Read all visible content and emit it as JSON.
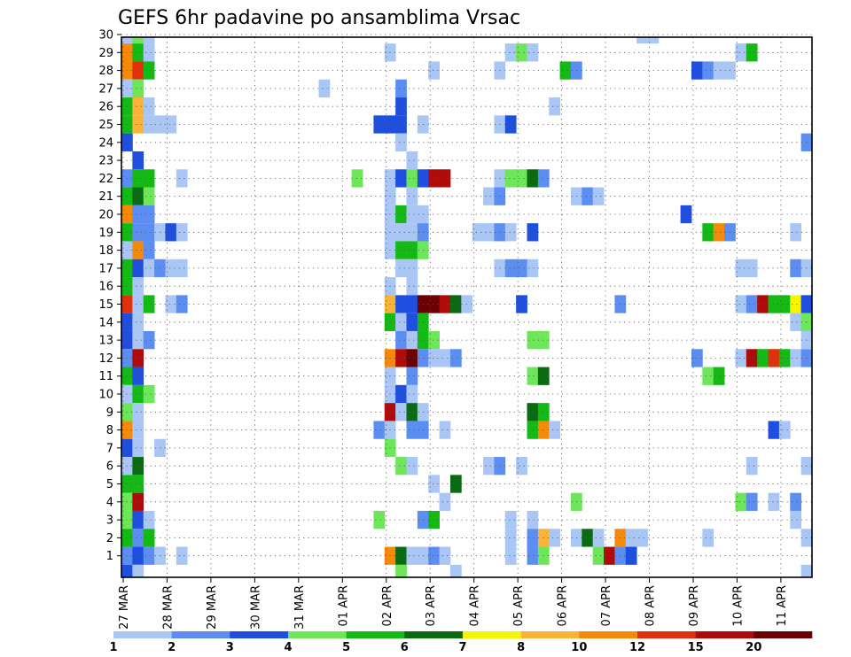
{
  "chart_data": {
    "type": "heatmap",
    "title": "GEFS 6hr padavine po ansamblima Vrsac",
    "x_ticks": [
      "27 MAR",
      "28 MAR",
      "29 MAR",
      "30 MAR",
      "31 MAR",
      "01 APR",
      "02 APR",
      "03 APR",
      "04 APR",
      "05 APR",
      "06 APR",
      "07 APR",
      "08 APR",
      "09 APR",
      "10 APR",
      "11 APR"
    ],
    "y_ticks": [
      "1",
      "2",
      "3",
      "4",
      "5",
      "6",
      "7",
      "8",
      "9",
      "10",
      "11",
      "12",
      "13",
      "14",
      "15",
      "16",
      "17",
      "18",
      "19",
      "20",
      "21",
      "22",
      "23",
      "24",
      "25",
      "26",
      "27",
      "28",
      "29",
      "30"
    ],
    "legend": {
      "labels": [
        "1",
        "2",
        "3",
        "4",
        "5",
        "6",
        "7",
        "8",
        "10",
        "12",
        "15",
        "20"
      ],
      "colors": [
        "#a9c6f5",
        "#5b8ef0",
        "#1f4fde",
        "#6de65a",
        "#15b915",
        "#0b6b12",
        "#f5f500",
        "#f9b437",
        "#f58a0a",
        "#e0300c",
        "#b00b0b",
        "#6b0000"
      ]
    },
    "cells": [
      [
        0,
        30,
        1
      ],
      [
        0,
        29,
        9
      ],
      [
        0,
        28,
        9
      ],
      [
        0,
        27,
        1
      ],
      [
        0,
        26,
        5
      ],
      [
        0,
        25,
        5
      ],
      [
        0,
        24,
        3
      ],
      [
        0,
        22,
        2
      ],
      [
        0,
        21,
        5
      ],
      [
        0,
        20,
        9
      ],
      [
        0,
        19,
        5
      ],
      [
        0,
        18,
        1
      ],
      [
        0,
        17,
        5
      ],
      [
        0,
        16,
        5
      ],
      [
        0,
        15,
        10
      ],
      [
        0,
        14,
        3
      ],
      [
        0,
        13,
        3
      ],
      [
        0,
        12,
        2
      ],
      [
        0,
        11,
        5
      ],
      [
        0,
        10,
        1
      ],
      [
        0,
        9,
        4
      ],
      [
        0,
        8,
        9
      ],
      [
        0,
        7,
        3
      ],
      [
        0,
        6,
        1
      ],
      [
        0,
        5,
        5
      ],
      [
        0,
        4,
        4
      ],
      [
        0,
        3,
        4
      ],
      [
        0,
        2,
        5
      ],
      [
        0,
        1,
        2
      ],
      [
        0,
        0,
        3
      ],
      [
        1,
        30,
        4
      ],
      [
        1,
        29,
        5
      ],
      [
        1,
        28,
        10
      ],
      [
        1,
        27,
        4
      ],
      [
        1,
        26,
        8
      ],
      [
        1,
        25,
        8
      ],
      [
        1,
        23,
        3
      ],
      [
        1,
        22,
        5
      ],
      [
        1,
        21,
        6
      ],
      [
        1,
        20,
        2
      ],
      [
        1,
        19,
        2
      ],
      [
        1,
        18,
        9
      ],
      [
        1,
        17,
        3
      ],
      [
        1,
        16,
        1
      ],
      [
        1,
        15,
        1
      ],
      [
        1,
        14,
        1
      ],
      [
        1,
        13,
        1
      ],
      [
        1,
        12,
        11
      ],
      [
        1,
        11,
        3
      ],
      [
        1,
        10,
        5
      ],
      [
        1,
        9,
        1
      ],
      [
        1,
        8,
        1
      ],
      [
        1,
        7,
        1
      ],
      [
        1,
        6,
        6
      ],
      [
        1,
        5,
        5
      ],
      [
        1,
        4,
        11
      ],
      [
        1,
        3,
        3
      ],
      [
        1,
        2,
        2
      ],
      [
        1,
        1,
        3
      ],
      [
        1,
        0,
        1
      ],
      [
        2,
        30,
        1
      ],
      [
        2,
        29,
        1
      ],
      [
        2,
        28,
        5
      ],
      [
        2,
        26,
        1
      ],
      [
        2,
        25,
        1
      ],
      [
        2,
        22,
        5
      ],
      [
        2,
        21,
        4
      ],
      [
        2,
        20,
        2
      ],
      [
        2,
        19,
        2
      ],
      [
        2,
        18,
        2
      ],
      [
        2,
        17,
        1
      ],
      [
        2,
        15,
        5
      ],
      [
        2,
        13,
        2
      ],
      [
        2,
        10,
        4
      ],
      [
        2,
        3,
        1
      ],
      [
        2,
        2,
        5
      ],
      [
        2,
        1,
        2
      ],
      [
        3,
        25,
        1
      ],
      [
        3,
        19,
        1
      ],
      [
        3,
        17,
        2
      ],
      [
        3,
        7,
        1
      ],
      [
        3,
        1,
        1
      ],
      [
        4,
        25,
        1
      ],
      [
        4,
        19,
        3
      ],
      [
        4,
        17,
        1
      ],
      [
        4,
        15,
        1
      ],
      [
        5,
        22,
        1
      ],
      [
        5,
        19,
        1
      ],
      [
        5,
        17,
        1
      ],
      [
        5,
        15,
        2
      ],
      [
        5,
        1,
        1
      ],
      [
        18,
        27,
        1
      ],
      [
        21,
        22,
        4
      ],
      [
        23,
        3,
        4
      ],
      [
        23,
        8,
        2
      ],
      [
        23,
        25,
        3
      ],
      [
        24,
        29,
        1
      ],
      [
        24,
        25,
        3
      ],
      [
        24,
        22,
        1
      ],
      [
        24,
        21,
        1
      ],
      [
        24,
        20,
        1
      ],
      [
        24,
        19,
        1
      ],
      [
        24,
        18,
        1
      ],
      [
        24,
        16,
        1
      ],
      [
        24,
        15,
        8
      ],
      [
        24,
        14,
        5
      ],
      [
        24,
        12,
        9
      ],
      [
        24,
        11,
        1
      ],
      [
        24,
        10,
        1
      ],
      [
        24,
        9,
        11
      ],
      [
        24,
        8,
        1
      ],
      [
        24,
        7,
        4
      ],
      [
        24,
        1,
        9
      ],
      [
        25,
        27,
        2
      ],
      [
        25,
        26,
        3
      ],
      [
        25,
        25,
        3
      ],
      [
        25,
        24,
        1
      ],
      [
        25,
        22,
        3
      ],
      [
        25,
        20,
        5
      ],
      [
        25,
        19,
        1
      ],
      [
        25,
        18,
        5
      ],
      [
        25,
        17,
        1
      ],
      [
        25,
        15,
        3
      ],
      [
        25,
        14,
        1
      ],
      [
        25,
        13,
        2
      ],
      [
        25,
        12,
        11
      ],
      [
        25,
        10,
        3
      ],
      [
        25,
        9,
        1
      ],
      [
        25,
        6,
        4
      ],
      [
        25,
        1,
        6
      ],
      [
        25,
        0,
        4
      ],
      [
        26,
        23,
        1
      ],
      [
        26,
        22,
        4
      ],
      [
        26,
        21,
        1
      ],
      [
        26,
        20,
        1
      ],
      [
        26,
        19,
        1
      ],
      [
        26,
        18,
        5
      ],
      [
        26,
        17,
        1
      ],
      [
        26,
        16,
        1
      ],
      [
        26,
        15,
        3
      ],
      [
        26,
        14,
        3
      ],
      [
        26,
        13,
        1
      ],
      [
        26,
        12,
        12
      ],
      [
        26,
        11,
        2
      ],
      [
        26,
        10,
        1
      ],
      [
        26,
        9,
        6
      ],
      [
        26,
        8,
        2
      ],
      [
        26,
        6,
        1
      ],
      [
        26,
        1,
        1
      ],
      [
        27,
        25,
        1
      ],
      [
        27,
        22,
        3
      ],
      [
        27,
        20,
        1
      ],
      [
        27,
        19,
        2
      ],
      [
        27,
        18,
        4
      ],
      [
        27,
        15,
        12
      ],
      [
        27,
        14,
        5
      ],
      [
        27,
        13,
        5
      ],
      [
        27,
        12,
        2
      ],
      [
        27,
        9,
        1
      ],
      [
        27,
        8,
        2
      ],
      [
        27,
        3,
        2
      ],
      [
        27,
        1,
        1
      ],
      [
        28,
        28,
        1
      ],
      [
        28,
        22,
        11
      ],
      [
        28,
        15,
        12
      ],
      [
        28,
        13,
        4
      ],
      [
        28,
        12,
        1
      ],
      [
        28,
        5,
        1
      ],
      [
        28,
        3,
        5
      ],
      [
        28,
        1,
        2
      ],
      [
        29,
        22,
        11
      ],
      [
        29,
        15,
        11
      ],
      [
        29,
        12,
        1
      ],
      [
        29,
        8,
        1
      ],
      [
        29,
        4,
        1
      ],
      [
        29,
        1,
        1
      ],
      [
        30,
        15,
        6
      ],
      [
        30,
        12,
        2
      ],
      [
        30,
        5,
        6
      ],
      [
        30,
        0,
        1
      ],
      [
        31,
        15,
        1
      ],
      [
        32,
        19,
        1
      ],
      [
        33,
        21,
        1
      ],
      [
        33,
        19,
        1
      ],
      [
        33,
        6,
        1
      ],
      [
        34,
        28,
        1
      ],
      [
        34,
        25,
        1
      ],
      [
        34,
        22,
        1
      ],
      [
        34,
        21,
        2
      ],
      [
        34,
        19,
        2
      ],
      [
        34,
        17,
        1
      ],
      [
        34,
        6,
        2
      ],
      [
        35,
        29,
        1
      ],
      [
        35,
        25,
        3
      ],
      [
        35,
        22,
        4
      ],
      [
        35,
        19,
        1
      ],
      [
        35,
        17,
        2
      ],
      [
        35,
        3,
        1
      ],
      [
        35,
        2,
        1
      ],
      [
        35,
        1,
        1
      ],
      [
        36,
        29,
        4
      ],
      [
        36,
        22,
        4
      ],
      [
        36,
        17,
        2
      ],
      [
        36,
        15,
        3
      ],
      [
        36,
        6,
        1
      ],
      [
        37,
        29,
        1
      ],
      [
        37,
        22,
        6
      ],
      [
        37,
        19,
        3
      ],
      [
        37,
        17,
        1
      ],
      [
        37,
        13,
        4
      ],
      [
        37,
        11,
        4
      ],
      [
        37,
        9,
        6
      ],
      [
        37,
        8,
        5
      ],
      [
        37,
        3,
        1
      ],
      [
        37,
        2,
        2
      ],
      [
        37,
        1,
        2
      ],
      [
        38,
        22,
        2
      ],
      [
        38,
        13,
        4
      ],
      [
        38,
        11,
        6
      ],
      [
        38,
        9,
        5
      ],
      [
        38,
        8,
        9
      ],
      [
        38,
        2,
        8
      ],
      [
        38,
        1,
        4
      ],
      [
        39,
        26,
        1
      ],
      [
        39,
        8,
        1
      ],
      [
        39,
        2,
        1
      ],
      [
        40,
        28,
        5
      ],
      [
        41,
        28,
        2
      ],
      [
        41,
        21,
        1
      ],
      [
        41,
        4,
        4
      ],
      [
        41,
        2,
        1
      ],
      [
        42,
        21,
        2
      ],
      [
        42,
        2,
        6
      ],
      [
        43,
        21,
        1
      ],
      [
        43,
        2,
        1
      ],
      [
        43,
        1,
        4
      ],
      [
        44,
        1,
        11
      ],
      [
        45,
        15,
        2
      ],
      [
        45,
        2,
        9
      ],
      [
        45,
        1,
        2
      ],
      [
        46,
        2,
        1
      ],
      [
        46,
        1,
        3
      ],
      [
        47,
        30,
        1
      ],
      [
        47,
        2,
        1
      ],
      [
        48,
        30,
        1
      ],
      [
        51,
        20,
        3
      ],
      [
        52,
        28,
        3
      ],
      [
        52,
        12,
        2
      ],
      [
        53,
        28,
        2
      ],
      [
        53,
        19,
        5
      ],
      [
        53,
        11,
        4
      ],
      [
        53,
        2,
        1
      ],
      [
        54,
        28,
        1
      ],
      [
        54,
        19,
        9
      ],
      [
        54,
        11,
        5
      ],
      [
        55,
        28,
        1
      ],
      [
        55,
        19,
        2
      ],
      [
        56,
        29,
        1
      ],
      [
        56,
        17,
        1
      ],
      [
        56,
        15,
        1
      ],
      [
        56,
        12,
        1
      ],
      [
        56,
        4,
        4
      ],
      [
        57,
        29,
        5
      ],
      [
        57,
        17,
        1
      ],
      [
        57,
        15,
        2
      ],
      [
        57,
        12,
        11
      ],
      [
        57,
        6,
        1
      ],
      [
        57,
        4,
        2
      ],
      [
        58,
        15,
        11
      ],
      [
        58,
        12,
        5
      ],
      [
        59,
        15,
        5
      ],
      [
        59,
        12,
        10
      ],
      [
        59,
        8,
        3
      ],
      [
        59,
        4,
        1
      ],
      [
        60,
        15,
        5
      ],
      [
        60,
        12,
        5
      ],
      [
        60,
        8,
        1
      ],
      [
        61,
        17,
        2
      ],
      [
        61,
        15,
        7
      ],
      [
        61,
        19,
        1
      ],
      [
        61,
        12,
        1
      ],
      [
        61,
        14,
        1
      ],
      [
        61,
        3,
        1
      ],
      [
        61,
        4,
        2
      ],
      [
        62,
        17,
        1
      ],
      [
        62,
        15,
        3
      ],
      [
        62,
        14,
        4
      ],
      [
        62,
        12,
        2
      ],
      [
        62,
        13,
        1
      ],
      [
        62,
        6,
        1
      ],
      [
        62,
        2,
        1
      ],
      [
        62,
        24,
        2
      ],
      [
        62,
        0,
        1
      ]
    ]
  }
}
